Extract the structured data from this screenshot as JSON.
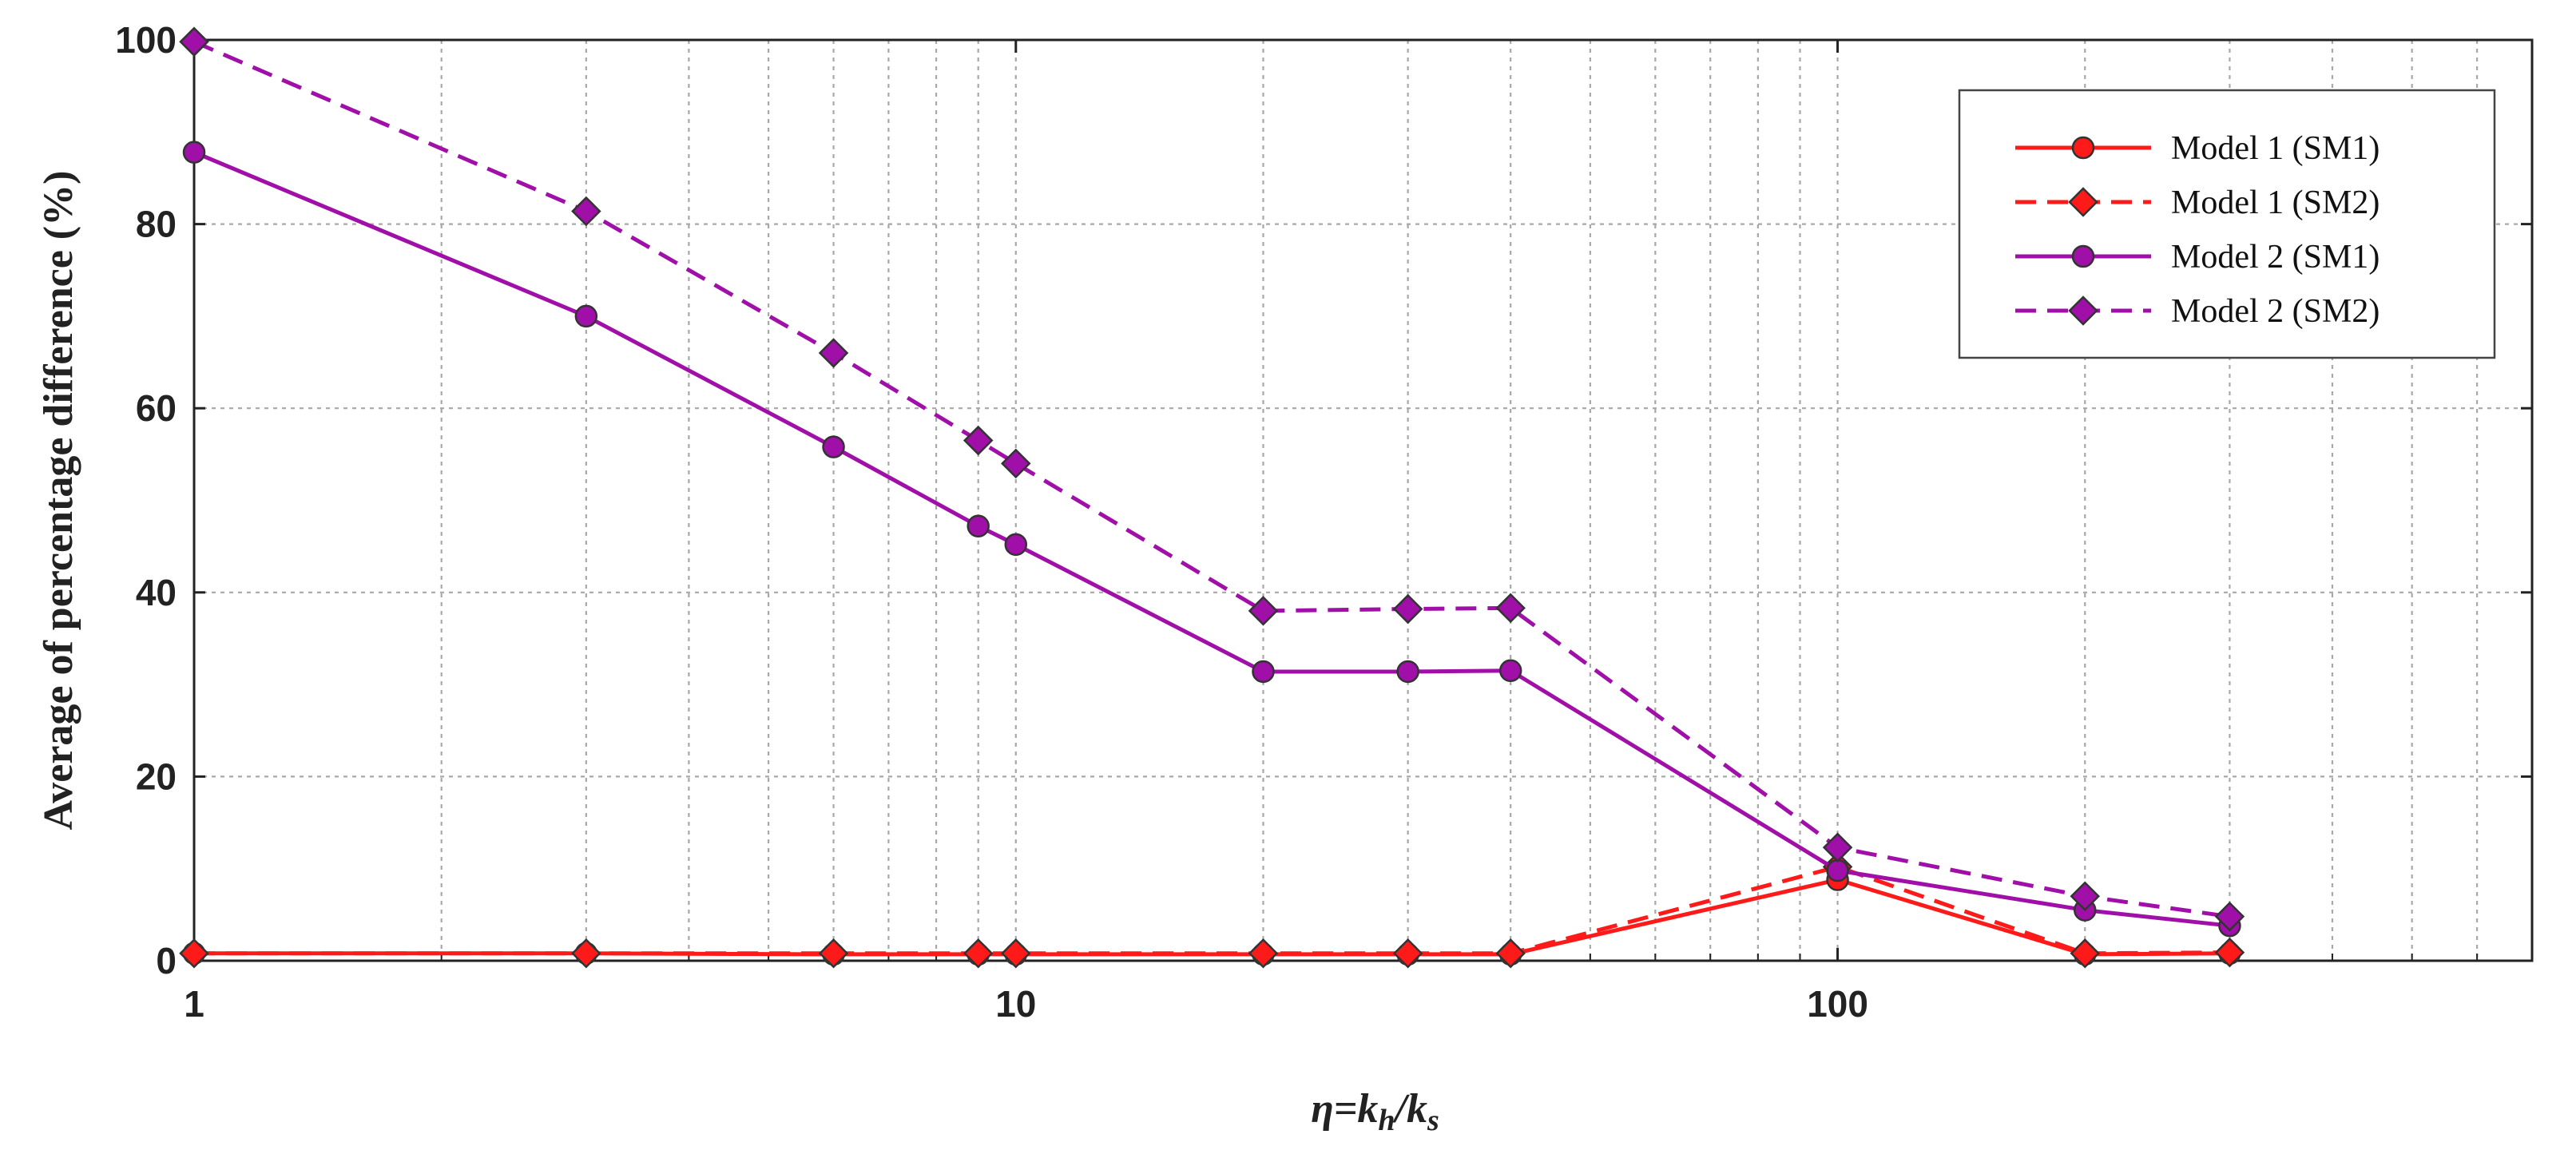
{
  "chart_data": {
    "type": "line",
    "xlabel": "η=k_h/k_s",
    "ylabel": "Average of percentage difference (%)",
    "xscale": "log",
    "xlim": [
      1,
      700
    ],
    "ylim": [
      0,
      100
    ],
    "xticks": [
      1,
      10,
      100
    ],
    "xtick_labels": [
      "1",
      "10",
      "100"
    ],
    "yticks": [
      0,
      20,
      40,
      60,
      80,
      100
    ],
    "ytick_labels": [
      "0",
      "20",
      "40",
      "60",
      "80",
      "100"
    ],
    "grid": true,
    "legend_position": "top-right",
    "x": [
      1,
      3,
      6,
      9,
      10,
      20,
      30,
      40,
      100,
      200,
      300
    ],
    "series": [
      {
        "name": "Model 1 (SM1)",
        "color": "#ff1a1a",
        "dash": "solid",
        "marker": "circle",
        "values": [
          0.8,
          0.8,
          0.7,
          0.7,
          0.7,
          0.7,
          0.7,
          0.7,
          8.8,
          0.7,
          0.8
        ]
      },
      {
        "name": "Model 1 (SM2)",
        "color": "#ff1a1a",
        "dash": "dashed",
        "marker": "diamond",
        "values": [
          0.8,
          0.8,
          0.8,
          0.8,
          0.8,
          0.8,
          0.8,
          0.8,
          10.2,
          0.8,
          0.9
        ]
      },
      {
        "name": "Model 2 (SM1)",
        "color": "#a010a8",
        "dash": "solid",
        "marker": "circle",
        "values": [
          87.8,
          70.0,
          55.8,
          47.2,
          45.2,
          31.4,
          31.4,
          31.5,
          9.8,
          5.5,
          3.8
        ]
      },
      {
        "name": "Model 2 (SM2)",
        "color": "#a010a8",
        "dash": "dashed",
        "marker": "diamond",
        "values": [
          99.8,
          81.4,
          66.0,
          56.5,
          54.0,
          38.0,
          38.2,
          38.3,
          12.3,
          7.0,
          4.8
        ]
      }
    ]
  }
}
